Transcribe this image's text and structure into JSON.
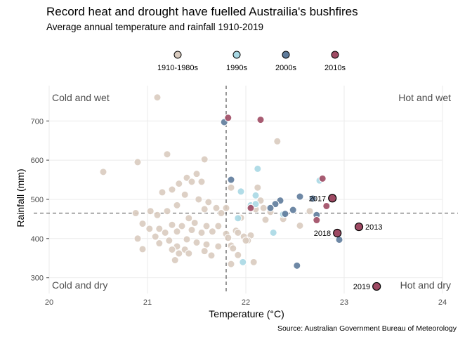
{
  "chart_data": {
    "type": "scatter",
    "title": "Record heat and drought have fuelled Austrailia's bushfires",
    "subtitle": "Average annual temperature and rainfall 1910-2019",
    "xlabel": "Temperature (°C)",
    "ylabel": "Rainfall (mm)",
    "caption": "Source: Australian Government Bureau of Meteorology",
    "xlim": [
      20,
      24
    ],
    "ylim": [
      260,
      790
    ],
    "x_ticks": [
      20,
      21,
      22,
      23,
      24
    ],
    "y_ticks": [
      300,
      400,
      500,
      600,
      700
    ],
    "grid": true,
    "legend_position": "top",
    "reference_lines": {
      "x": 21.8,
      "y": 465
    },
    "quadrant_labels": {
      "top_left": "Cold and wet",
      "top_right": "Hot and wet",
      "bottom_left": "Cold and dry",
      "bottom_right": "Hot and dry"
    },
    "series": [
      {
        "name": "1910-1980s",
        "color": "#d9cbbf",
        "points": [
          [
            21.1,
            760
          ],
          [
            20.55,
            570
          ],
          [
            20.9,
            595
          ],
          [
            21.2,
            615
          ],
          [
            21.58,
            602
          ],
          [
            21.5,
            565
          ],
          [
            21.4,
            555
          ],
          [
            21.45,
            545
          ],
          [
            21.55,
            545
          ],
          [
            21.32,
            540
          ],
          [
            21.25,
            525
          ],
          [
            21.15,
            518
          ],
          [
            21.38,
            512
          ],
          [
            21.52,
            500
          ],
          [
            21.62,
            493
          ],
          [
            21.7,
            478
          ],
          [
            21.8,
            478
          ],
          [
            21.58,
            475
          ],
          [
            21.3,
            485
          ],
          [
            21.2,
            470
          ],
          [
            21.1,
            460
          ],
          [
            20.88,
            465
          ],
          [
            21.03,
            470
          ],
          [
            21.42,
            452
          ],
          [
            21.48,
            440
          ],
          [
            21.6,
            432
          ],
          [
            21.72,
            432
          ],
          [
            21.35,
            432
          ],
          [
            21.25,
            435
          ],
          [
            21.12,
            425
          ],
          [
            21.02,
            425
          ],
          [
            20.95,
            438
          ],
          [
            21.45,
            422
          ],
          [
            21.55,
            415
          ],
          [
            21.66,
            418
          ],
          [
            21.8,
            412
          ],
          [
            21.3,
            418
          ],
          [
            21.18,
            415
          ],
          [
            21.08,
            405
          ],
          [
            20.9,
            400
          ],
          [
            21.22,
            395
          ],
          [
            21.4,
            398
          ],
          [
            21.5,
            390
          ],
          [
            21.6,
            385
          ],
          [
            21.72,
            380
          ],
          [
            21.85,
            382
          ],
          [
            21.3,
            380
          ],
          [
            21.38,
            372
          ],
          [
            21.25,
            372
          ],
          [
            21.12,
            388
          ],
          [
            20.95,
            373
          ],
          [
            21.58,
            368
          ],
          [
            21.65,
            357
          ],
          [
            21.42,
            362
          ],
          [
            21.32,
            362
          ],
          [
            21.28,
            345
          ],
          [
            21.82,
            402
          ],
          [
            21.87,
            375
          ],
          [
            21.9,
            420
          ],
          [
            21.98,
            405
          ],
          [
            22.05,
            408
          ],
          [
            22.02,
            395
          ],
          [
            21.92,
            358
          ],
          [
            22.08,
            340
          ],
          [
            22.12,
            530
          ],
          [
            22.32,
            648
          ],
          [
            22.15,
            497
          ],
          [
            22.18,
            478
          ],
          [
            22.25,
            468
          ],
          [
            22.2,
            448
          ],
          [
            22.1,
            475
          ],
          [
            22.05,
            482
          ],
          [
            21.85,
            335
          ],
          [
            21.85,
            530
          ],
          [
            21.95,
            453
          ],
          [
            22.38,
            450
          ],
          [
            22.55,
            433
          ],
          [
            22.65,
            470
          ],
          [
            21.75,
            465
          ],
          [
            21.92,
            415
          ],
          [
            22.0,
            395
          ]
        ]
      },
      {
        "name": "1990s",
        "color": "#a8d8e4",
        "points": [
          [
            22.12,
            578
          ],
          [
            21.95,
            520
          ],
          [
            22.1,
            510
          ],
          [
            22.05,
            485
          ],
          [
            21.92,
            452
          ],
          [
            22.38,
            462
          ],
          [
            22.28,
            415
          ],
          [
            21.97,
            340
          ],
          [
            22.1,
            488
          ],
          [
            22.75,
            548
          ]
        ]
      },
      {
        "name": "2000s",
        "color": "#5e7b9b",
        "points": [
          [
            21.78,
            697
          ],
          [
            21.85,
            550
          ],
          [
            22.55,
            507
          ],
          [
            22.35,
            497
          ],
          [
            22.3,
            488
          ],
          [
            22.25,
            478
          ],
          [
            22.48,
            473
          ],
          [
            22.4,
            463
          ],
          [
            22.72,
            460
          ],
          [
            22.95,
            397
          ],
          [
            22.52,
            331
          ],
          [
            22.68,
            502
          ]
        ]
      },
      {
        "name": "2010s",
        "color": "#9e4a63",
        "points": [
          [
            21.82,
            708
          ],
          [
            22.15,
            703
          ],
          [
            22.78,
            553
          ],
          [
            22.82,
            483
          ],
          [
            22.72,
            447
          ],
          [
            22.05,
            478
          ],
          [
            22.88,
            503
          ],
          [
            22.93,
            414
          ],
          [
            23.15,
            430
          ],
          [
            23.33,
            278
          ]
        ]
      }
    ],
    "highlighted": [
      {
        "label": "2017",
        "x": 22.88,
        "y": 503,
        "side": "left"
      },
      {
        "label": "2018",
        "x": 22.93,
        "y": 414,
        "side": "left"
      },
      {
        "label": "2013",
        "x": 23.15,
        "y": 430,
        "side": "right"
      },
      {
        "label": "2019",
        "x": 23.33,
        "y": 278,
        "side": "left"
      }
    ]
  }
}
